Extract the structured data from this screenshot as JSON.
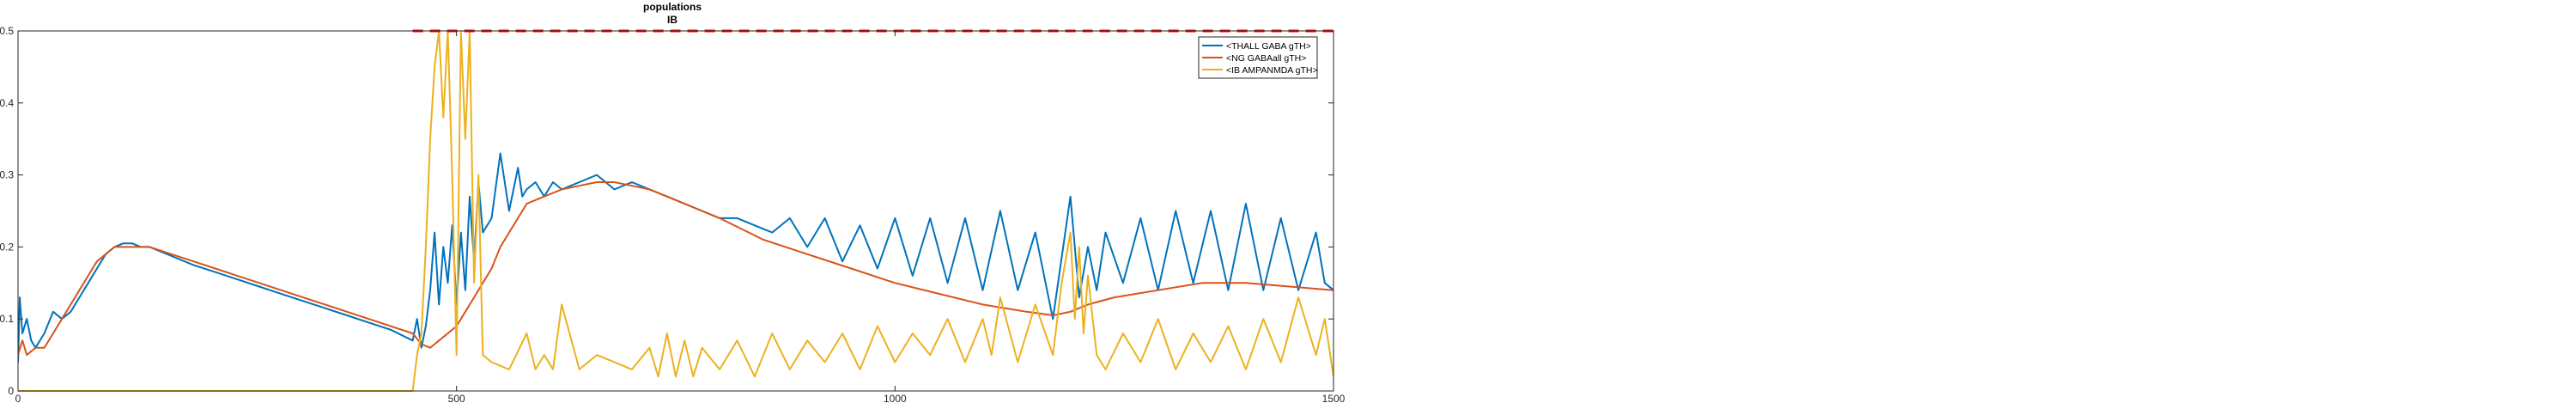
{
  "chart_data": {
    "type": "line",
    "title": "populations",
    "subtitle": "IB",
    "xlabel": "",
    "ylabel": "",
    "xlim": [
      0,
      1500
    ],
    "ylim": [
      0,
      0.5
    ],
    "xticks": [
      0,
      500,
      1000,
      1500
    ],
    "yticks": [
      0,
      0.1,
      0.2,
      0.3,
      0.4,
      0.5
    ],
    "xtick_labels": [
      "0",
      "500",
      "1000",
      "1500"
    ],
    "ytick_labels": [
      "0",
      "0.1",
      "0.2",
      "0.3",
      "0.4",
      "0.5"
    ],
    "grid": false,
    "legend_position": "top-right",
    "series": [
      {
        "name": "<THALL GABA gTH>",
        "color": "#0072BD",
        "x": [
          0,
          2,
          5,
          10,
          15,
          20,
          30,
          40,
          50,
          60,
          70,
          80,
          90,
          100,
          110,
          120,
          130,
          140,
          150,
          160,
          180,
          200,
          225,
          250,
          275,
          300,
          325,
          350,
          375,
          400,
          425,
          450,
          455,
          460,
          465,
          470,
          475,
          480,
          485,
          490,
          495,
          500,
          505,
          510,
          515,
          520,
          525,
          530,
          540,
          550,
          560,
          570,
          575,
          580,
          590,
          600,
          610,
          620,
          640,
          660,
          680,
          700,
          720,
          740,
          760,
          780,
          800,
          820,
          840,
          860,
          880,
          900,
          920,
          940,
          960,
          980,
          1000,
          1020,
          1040,
          1060,
          1080,
          1100,
          1120,
          1140,
          1160,
          1180,
          1200,
          1210,
          1220,
          1230,
          1240,
          1260,
          1280,
          1300,
          1320,
          1340,
          1360,
          1380,
          1400,
          1420,
          1440,
          1460,
          1480,
          1490,
          1500
        ],
        "y": [
          0.04,
          0.13,
          0.08,
          0.1,
          0.07,
          0.06,
          0.08,
          0.11,
          0.1,
          0.11,
          0.13,
          0.15,
          0.17,
          0.19,
          0.2,
          0.205,
          0.205,
          0.2,
          0.2,
          0.195,
          0.185,
          0.175,
          0.165,
          0.155,
          0.145,
          0.135,
          0.125,
          0.115,
          0.105,
          0.095,
          0.085,
          0.07,
          0.1,
          0.06,
          0.09,
          0.14,
          0.22,
          0.12,
          0.2,
          0.15,
          0.23,
          0.12,
          0.22,
          0.14,
          0.27,
          0.18,
          0.29,
          0.22,
          0.24,
          0.33,
          0.25,
          0.31,
          0.27,
          0.28,
          0.29,
          0.27,
          0.29,
          0.28,
          0.29,
          0.3,
          0.28,
          0.29,
          0.28,
          0.27,
          0.26,
          0.25,
          0.24,
          0.24,
          0.23,
          0.22,
          0.24,
          0.2,
          0.24,
          0.18,
          0.23,
          0.17,
          0.24,
          0.16,
          0.24,
          0.15,
          0.24,
          0.14,
          0.25,
          0.14,
          0.22,
          0.1,
          0.27,
          0.13,
          0.2,
          0.14,
          0.22,
          0.15,
          0.24,
          0.14,
          0.25,
          0.15,
          0.25,
          0.14,
          0.26,
          0.14,
          0.24,
          0.14,
          0.22,
          0.15,
          0.14
        ]
      },
      {
        "name": "<NG GABAall gTH>",
        "color": "#D95319",
        "x": [
          0,
          5,
          10,
          20,
          30,
          40,
          50,
          60,
          70,
          80,
          90,
          100,
          110,
          120,
          130,
          140,
          150,
          175,
          200,
          225,
          250,
          275,
          300,
          325,
          350,
          375,
          400,
          425,
          450,
          460,
          470,
          480,
          490,
          500,
          510,
          520,
          530,
          540,
          550,
          560,
          570,
          580,
          600,
          620,
          640,
          660,
          680,
          700,
          720,
          740,
          760,
          780,
          800,
          850,
          900,
          950,
          1000,
          1050,
          1100,
          1150,
          1180,
          1200,
          1220,
          1250,
          1300,
          1350,
          1400,
          1450,
          1500
        ],
        "y": [
          0.05,
          0.07,
          0.05,
          0.06,
          0.06,
          0.08,
          0.1,
          0.12,
          0.14,
          0.16,
          0.18,
          0.19,
          0.2,
          0.2,
          0.2,
          0.2,
          0.2,
          0.19,
          0.18,
          0.17,
          0.16,
          0.15,
          0.14,
          0.13,
          0.12,
          0.11,
          0.1,
          0.09,
          0.08,
          0.065,
          0.06,
          0.07,
          0.08,
          0.09,
          0.11,
          0.13,
          0.15,
          0.17,
          0.2,
          0.22,
          0.24,
          0.26,
          0.27,
          0.28,
          0.285,
          0.29,
          0.29,
          0.285,
          0.28,
          0.27,
          0.26,
          0.25,
          0.24,
          0.21,
          0.19,
          0.17,
          0.15,
          0.135,
          0.12,
          0.11,
          0.105,
          0.11,
          0.12,
          0.13,
          0.14,
          0.15,
          0.15,
          0.145,
          0.14
        ]
      },
      {
        "name": "<IB AMPANMDA gTH>",
        "color": "#EDB120",
        "x": [
          0,
          50,
          100,
          200,
          300,
          400,
          450,
          455,
          460,
          465,
          470,
          475,
          480,
          485,
          490,
          495,
          500,
          505,
          510,
          515,
          520,
          525,
          530,
          540,
          560,
          580,
          590,
          600,
          610,
          620,
          640,
          660,
          700,
          720,
          730,
          740,
          750,
          760,
          770,
          780,
          800,
          820,
          840,
          860,
          880,
          900,
          920,
          940,
          960,
          980,
          1000,
          1020,
          1040,
          1060,
          1080,
          1100,
          1110,
          1120,
          1140,
          1160,
          1180,
          1190,
          1200,
          1205,
          1210,
          1215,
          1220,
          1230,
          1240,
          1260,
          1280,
          1300,
          1320,
          1340,
          1360,
          1380,
          1400,
          1420,
          1440,
          1460,
          1480,
          1490,
          1500
        ],
        "y": [
          0.0,
          0.0,
          0.0,
          0.0,
          0.0,
          0.0,
          0.0,
          0.05,
          0.08,
          0.2,
          0.35,
          0.45,
          0.5,
          0.38,
          0.5,
          0.3,
          0.05,
          0.5,
          0.35,
          0.5,
          0.15,
          0.3,
          0.05,
          0.04,
          0.03,
          0.08,
          0.03,
          0.05,
          0.03,
          0.12,
          0.03,
          0.05,
          0.03,
          0.06,
          0.02,
          0.08,
          0.02,
          0.07,
          0.02,
          0.06,
          0.03,
          0.07,
          0.02,
          0.08,
          0.03,
          0.07,
          0.04,
          0.08,
          0.03,
          0.09,
          0.04,
          0.08,
          0.05,
          0.1,
          0.04,
          0.1,
          0.05,
          0.13,
          0.04,
          0.12,
          0.05,
          0.15,
          0.22,
          0.1,
          0.2,
          0.08,
          0.16,
          0.05,
          0.03,
          0.08,
          0.04,
          0.1,
          0.03,
          0.08,
          0.04,
          0.09,
          0.03,
          0.1,
          0.04,
          0.13,
          0.05,
          0.1,
          0.02
        ]
      }
    ],
    "reference_line": {
      "y": 0.5,
      "x_start": 450,
      "x_end": 1500,
      "color": "#FF0000",
      "style": "dashed"
    }
  }
}
